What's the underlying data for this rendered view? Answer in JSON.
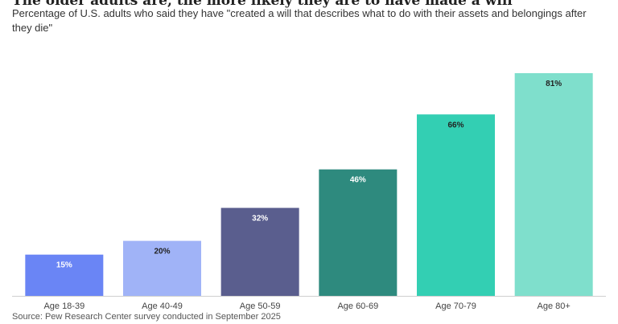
{
  "chart_data": {
    "type": "bar",
    "title": "The older adults are, the more likely they are to have made a will",
    "subtitle": "Percentage of U.S. adults who said they have \"created a will that describes what to do with their assets and belongings after they die\"",
    "source": "Source: Pew Research Center survey conducted in September 2025",
    "categories": [
      "Age 18-39",
      "Age 40-49",
      "Age 50-59",
      "Age 60-69",
      "Age 70-79",
      "Age 80+"
    ],
    "values": [
      15,
      20,
      32,
      46,
      66,
      81
    ],
    "value_labels": [
      "15%",
      "20%",
      "32%",
      "46%",
      "66%",
      "81%"
    ],
    "colors": [
      "#6a85f5",
      "#a0b3f7",
      "#5a5e8e",
      "#2e8a7e",
      "#33cfb3",
      "#7fdfcc"
    ],
    "label_colors": [
      "#ffffff",
      "#222222",
      "#ffffff",
      "#ffffff",
      "#222222",
      "#222222"
    ]
  }
}
